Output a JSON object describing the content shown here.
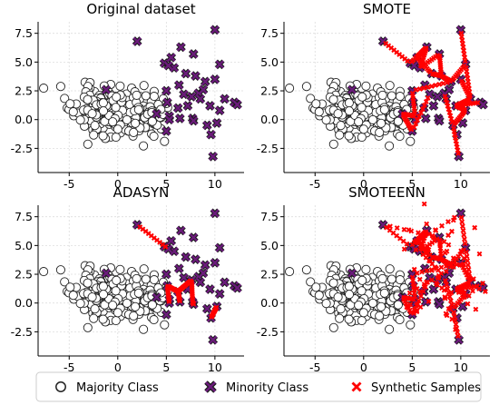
{
  "legend": {
    "items": [
      {
        "label": "Majority Class",
        "marker": "circle-open"
      },
      {
        "label": "Minority Class",
        "marker": "x-purple"
      },
      {
        "label": "Synthetic Samples",
        "marker": "x-red"
      }
    ]
  },
  "colors": {
    "majority_edge": "#222222",
    "majority_fill": "#ffffff",
    "minority_fill": "#6a1b7a",
    "minority_edge": "#1a1a1a",
    "synthetic": "#ff0000",
    "grid": "#dddddd",
    "axis": "#000000"
  },
  "chart_data": [
    {
      "type": "scatter",
      "title": "Original dataset",
      "xlim": [
        -8.2,
        13
      ],
      "ylim": [
        -4.6,
        8.5
      ],
      "xticks": [
        -5,
        0,
        5,
        10
      ],
      "yticks": [
        -2.5,
        0.0,
        2.5,
        5.0,
        7.5
      ],
      "grid": true,
      "series": [
        {
          "name": "Majority Class",
          "marker": "circle-open",
          "cluster": {
            "seed": 11,
            "n": 300
          }
        },
        {
          "name": "Minority Class",
          "marker": "x-purple",
          "points": "minority"
        }
      ]
    },
    {
      "type": "scatter",
      "title": "SMOTE",
      "xlim": [
        -8.2,
        13
      ],
      "ylim": [
        -4.6,
        8.5
      ],
      "xticks": [
        -5,
        0,
        5,
        10
      ],
      "yticks": [
        -2.5,
        0.0,
        2.5,
        5.0,
        7.5
      ],
      "grid": true,
      "series": [
        {
          "name": "Majority Class",
          "marker": "circle-open",
          "cluster": {
            "seed": 11,
            "n": 300
          }
        },
        {
          "name": "Minority Class",
          "marker": "x-purple",
          "points": "minority"
        },
        {
          "name": "Synthetic Samples",
          "marker": "x-red",
          "segments": [
            [
              0,
              1
            ],
            [
              1,
              3
            ],
            [
              2,
              3
            ],
            [
              3,
              4
            ],
            [
              4,
              5
            ],
            [
              5,
              7
            ],
            [
              6,
              7
            ],
            [
              7,
              8
            ],
            [
              8,
              10
            ],
            [
              9,
              10
            ],
            [
              10,
              12
            ],
            [
              11,
              12
            ],
            [
              12,
              14
            ],
            [
              13,
              14
            ],
            [
              14,
              15
            ],
            [
              15,
              17
            ],
            [
              16,
              17
            ],
            [
              17,
              18
            ],
            [
              19,
              20
            ],
            [
              20,
              21
            ],
            [
              21,
              22
            ],
            [
              8,
              19
            ],
            [
              2,
              6
            ],
            [
              22,
              23
            ]
          ],
          "per_segment": 9
        }
      ]
    },
    {
      "type": "scatter",
      "title": "ADASYN",
      "xlim": [
        -8.2,
        13
      ],
      "ylim": [
        -4.6,
        8.5
      ],
      "xticks": [
        -5,
        0,
        5,
        10
      ],
      "yticks": [
        -2.5,
        0.0,
        2.5,
        5.0,
        7.5
      ],
      "grid": true,
      "series": [
        {
          "name": "Majority Class",
          "marker": "circle-open",
          "cluster": {
            "seed": 11,
            "n": 300
          }
        },
        {
          "name": "Minority Class",
          "marker": "x-purple",
          "points": "minority"
        },
        {
          "name": "Synthetic Samples",
          "marker": "x-red",
          "segments": [
            [
              0,
              24
            ],
            [
              25,
              26
            ],
            [
              26,
              27
            ],
            [
              27,
              28
            ],
            [
              25,
              29
            ],
            [
              26,
              30
            ],
            [
              28,
              31
            ],
            [
              32,
              33
            ]
          ],
          "per_segment": 10
        }
      ]
    },
    {
      "type": "scatter",
      "title": "SMOTEENN",
      "xlim": [
        -8.2,
        13
      ],
      "ylim": [
        -4.6,
        8.5
      ],
      "xticks": [
        -5,
        0,
        5,
        10
      ],
      "yticks": [
        -2.5,
        0.0,
        2.5,
        5.0,
        7.5
      ],
      "grid": true,
      "series": [
        {
          "name": "Majority Class",
          "marker": "circle-open",
          "cluster": {
            "seed": 11,
            "n": 300
          }
        },
        {
          "name": "Minority Class",
          "marker": "x-purple",
          "points": "minority"
        },
        {
          "name": "Synthetic Samples",
          "marker": "x-red",
          "segments": [
            [
              0,
              1
            ],
            [
              1,
              3
            ],
            [
              2,
              3
            ],
            [
              3,
              4
            ],
            [
              4,
              5
            ],
            [
              5,
              7
            ],
            [
              6,
              7
            ],
            [
              7,
              8
            ],
            [
              8,
              10
            ],
            [
              9,
              10
            ],
            [
              10,
              12
            ],
            [
              11,
              12
            ],
            [
              12,
              14
            ],
            [
              13,
              14
            ],
            [
              14,
              15
            ],
            [
              15,
              17
            ],
            [
              16,
              17
            ],
            [
              17,
              18
            ],
            [
              19,
              20
            ],
            [
              20,
              21
            ],
            [
              21,
              22
            ],
            [
              8,
              19
            ],
            [
              2,
              6
            ],
            [
              22,
              23
            ],
            [
              0,
              5
            ],
            [
              1,
              9
            ],
            [
              3,
              13
            ],
            [
              4,
              16
            ],
            [
              6,
              18
            ],
            [
              11,
              21
            ]
          ],
          "per_segment": 7,
          "scatter_extra": 60
        }
      ]
    }
  ],
  "minority_points": [
    [
      2.0,
      6.8
    ],
    [
      4.8,
      4.9
    ],
    [
      5.5,
      5.4
    ],
    [
      6.5,
      6.3
    ],
    [
      5.8,
      4.5
    ],
    [
      7.8,
      5.7
    ],
    [
      7.0,
      4.0
    ],
    [
      8.0,
      3.8
    ],
    [
      9.0,
      3.3
    ],
    [
      10.0,
      7.8
    ],
    [
      10.5,
      4.8
    ],
    [
      10.0,
      3.5
    ],
    [
      11.0,
      1.8
    ],
    [
      12.0,
      1.5
    ],
    [
      9.5,
      1.2
    ],
    [
      10.5,
      0.8
    ],
    [
      8.3,
      2.3
    ],
    [
      9.2,
      -0.5
    ],
    [
      9.8,
      -3.2
    ],
    [
      5.0,
      2.5
    ],
    [
      5.3,
      0.3
    ],
    [
      4.0,
      0.5
    ],
    [
      5.0,
      -1.0
    ],
    [
      6.8,
      2.2
    ],
    [
      5.2,
      4.7
    ],
    [
      5.1,
      1.5
    ],
    [
      6.2,
      1.0
    ],
    [
      7.6,
      2.0
    ],
    [
      7.7,
      0.1
    ],
    [
      5.3,
      0.0
    ],
    [
      6.4,
      0.1
    ],
    [
      7.8,
      -0.1
    ],
    [
      9.6,
      -1.3
    ],
    [
      10.2,
      -0.3
    ],
    [
      12.3,
      1.3
    ],
    [
      8.8,
      2.6
    ],
    [
      -1.2,
      2.6
    ],
    [
      6.3,
      3.0
    ],
    [
      7.2,
      1.2
    ],
    [
      8.5,
      1.8
    ]
  ]
}
